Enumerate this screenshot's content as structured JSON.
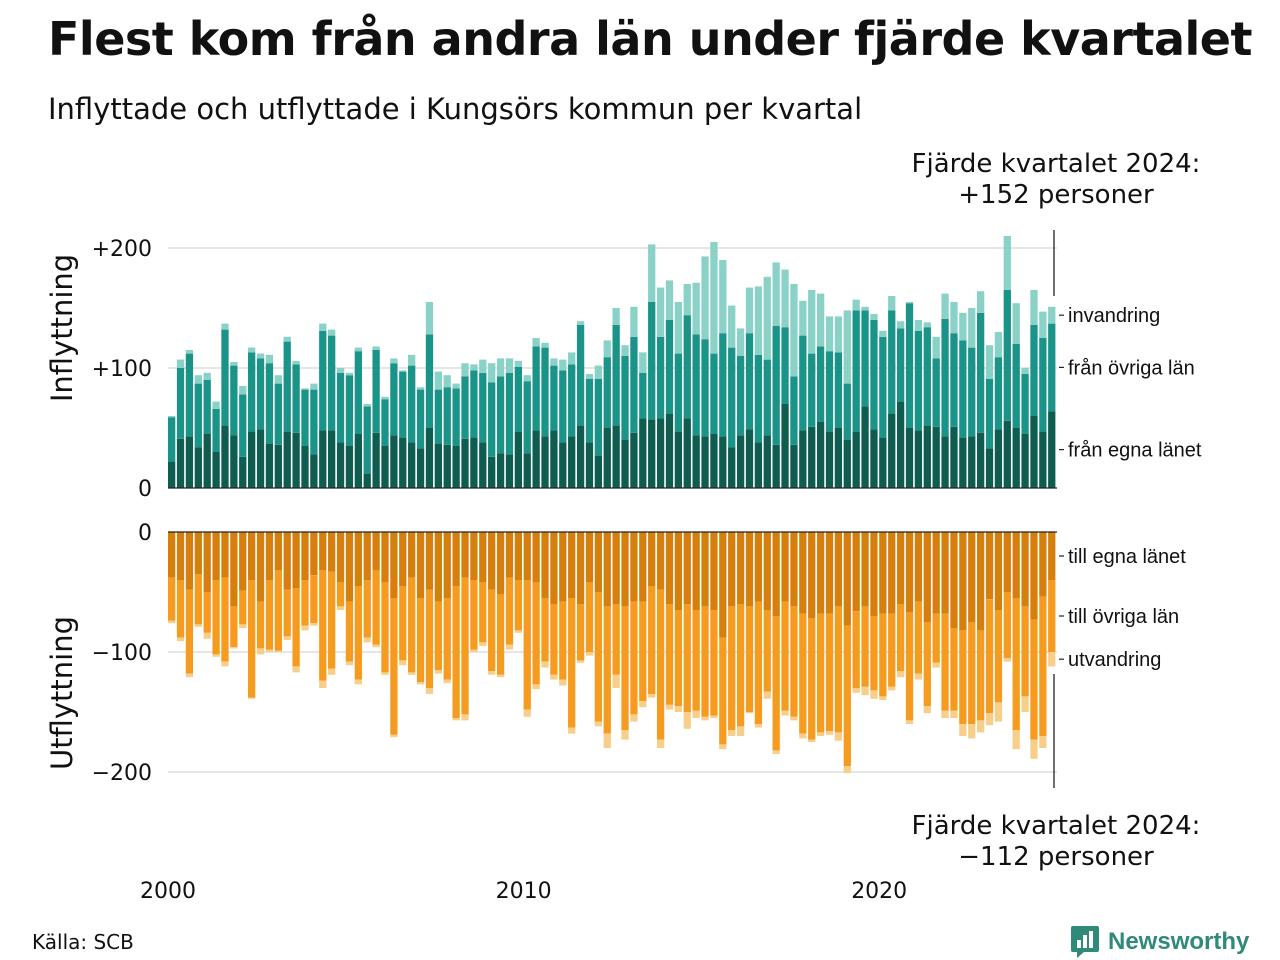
{
  "title": "Flest kom från andra län under fjärde kvartalet",
  "subtitle": "Inflyttade och utflyttade i Kungsörs kommun per kvartal",
  "note_top": {
    "line1": "Fjärde kvartalet 2024:",
    "line2": "+152 personer"
  },
  "note_bottom": {
    "line1": "Fjärde kvartalet 2024:",
    "line2": "−112 personer"
  },
  "source": "Källa: SCB",
  "brand": {
    "name": "Newsworthy",
    "icon": "newsworthy-logo-icon"
  },
  "colors": {
    "in_own": "#0f5c50",
    "in_other": "#1a9488",
    "in_abroad": "#8ad2c8",
    "out_own": "#d47f0e",
    "out_other": "#f59c20",
    "out_abroad": "#f8cf8a",
    "grid": "#dddddd",
    "brand": "#2f8a7a"
  },
  "chart_data": [
    {
      "type": "bar",
      "stacked": true,
      "panel": "top",
      "ylabel": "Inflyttning",
      "ylim": [
        0,
        220
      ],
      "yticks": [
        0,
        100,
        200
      ],
      "ytick_labels": [
        "0",
        "+100",
        "+200"
      ],
      "categories": [
        "2000 Q1",
        "2000 Q2",
        "2000 Q3",
        "2000 Q4",
        "2001 Q1",
        "2001 Q2",
        "2001 Q3",
        "2001 Q4",
        "2002 Q1",
        "2002 Q2",
        "2002 Q3",
        "2002 Q4",
        "2003 Q1",
        "2003 Q2",
        "2003 Q3",
        "2003 Q4",
        "2004 Q1",
        "2004 Q2",
        "2004 Q3",
        "2004 Q4",
        "2005 Q1",
        "2005 Q2",
        "2005 Q3",
        "2005 Q4",
        "2006 Q1",
        "2006 Q2",
        "2006 Q3",
        "2006 Q4",
        "2007 Q1",
        "2007 Q2",
        "2007 Q3",
        "2007 Q4",
        "2008 Q1",
        "2008 Q2",
        "2008 Q3",
        "2008 Q4",
        "2009 Q1",
        "2009 Q2",
        "2009 Q3",
        "2009 Q4",
        "2010 Q1",
        "2010 Q2",
        "2010 Q3",
        "2010 Q4",
        "2011 Q1",
        "2011 Q2",
        "2011 Q3",
        "2011 Q4",
        "2012 Q1",
        "2012 Q2",
        "2012 Q3",
        "2012 Q4",
        "2013 Q1",
        "2013 Q2",
        "2013 Q3",
        "2013 Q4",
        "2014 Q1",
        "2014 Q2",
        "2014 Q3",
        "2014 Q4",
        "2015 Q1",
        "2015 Q2",
        "2015 Q3",
        "2015 Q4",
        "2016 Q1",
        "2016 Q2",
        "2016 Q3",
        "2016 Q4",
        "2017 Q1",
        "2017 Q2",
        "2017 Q3",
        "2017 Q4",
        "2018 Q1",
        "2018 Q2",
        "2018 Q3",
        "2018 Q4",
        "2019 Q1",
        "2019 Q2",
        "2019 Q3",
        "2019 Q4",
        "2020 Q1",
        "2020 Q2",
        "2020 Q3",
        "2020 Q4",
        "2021 Q1",
        "2021 Q2",
        "2021 Q3",
        "2021 Q4",
        "2022 Q1",
        "2022 Q2",
        "2022 Q3",
        "2022 Q4",
        "2023 Q1",
        "2023 Q2",
        "2023 Q3",
        "2023 Q4",
        "2024 Q1",
        "2024 Q2",
        "2024 Q3",
        "2024 Q4"
      ],
      "x_tick_labels": [
        {
          "label": "2000",
          "category": "2000 Q1"
        },
        {
          "label": "2010",
          "category": "2010 Q1"
        },
        {
          "label": "2020",
          "category": "2020 Q1"
        }
      ],
      "series": [
        {
          "name": "från egna länet",
          "color": "#0f5c50",
          "values": [
            22,
            41,
            43,
            34,
            45,
            30,
            52,
            44,
            26,
            47,
            49,
            37,
            36,
            47,
            46,
            35,
            28,
            48,
            48,
            38,
            35,
            45,
            12,
            46,
            35,
            44,
            42,
            38,
            33,
            50,
            37,
            36,
            35,
            41,
            42,
            38,
            26,
            29,
            28,
            47,
            29,
            48,
            43,
            48,
            38,
            43,
            52,
            38,
            27,
            50,
            52,
            40,
            46,
            58,
            57,
            58,
            62,
            47,
            58,
            44,
            43,
            45,
            43,
            34,
            44,
            49,
            38,
            44,
            36,
            70,
            36,
            48,
            51,
            55,
            47,
            50,
            40,
            47,
            68,
            49,
            42,
            62,
            72,
            50,
            48,
            52,
            51,
            43,
            51,
            42,
            43,
            46,
            33,
            49,
            56,
            50,
            45,
            60,
            47,
            64
          ]
        },
        {
          "name": "från övriga län",
          "color": "#1a9488",
          "values": [
            37,
            59,
            69,
            53,
            45,
            36,
            80,
            58,
            52,
            66,
            59,
            67,
            51,
            75,
            57,
            47,
            54,
            83,
            79,
            58,
            59,
            69,
            56,
            69,
            39,
            60,
            55,
            64,
            49,
            78,
            45,
            48,
            48,
            52,
            56,
            58,
            62,
            64,
            68,
            54,
            60,
            70,
            74,
            54,
            60,
            60,
            84,
            53,
            64,
            59,
            84,
            70,
            80,
            38,
            98,
            68,
            78,
            65,
            86,
            84,
            81,
            67,
            86,
            83,
            66,
            80,
            73,
            63,
            99,
            64,
            57,
            79,
            61,
            63,
            67,
            63,
            47,
            101,
            80,
            91,
            84,
            86,
            61,
            104,
            83,
            82,
            57,
            98,
            78,
            81,
            74,
            100,
            58,
            60,
            109,
            70,
            50,
            76,
            78,
            73
          ]
        },
        {
          "name": "invandring",
          "color": "#8ad2c8",
          "values": [
            1,
            7,
            3,
            7,
            6,
            6,
            5,
            3,
            7,
            4,
            4,
            7,
            7,
            4,
            3,
            1,
            5,
            6,
            5,
            4,
            2,
            3,
            2,
            3,
            2,
            4,
            1,
            9,
            2,
            27,
            15,
            10,
            4,
            11,
            5,
            11,
            16,
            15,
            12,
            5,
            5,
            7,
            4,
            6,
            9,
            10,
            3,
            4,
            11,
            14,
            14,
            9,
            25,
            17,
            48,
            41,
            33,
            43,
            26,
            43,
            69,
            93,
            61,
            35,
            23,
            38,
            57,
            69,
            53,
            48,
            77,
            29,
            53,
            44,
            29,
            30,
            61,
            9,
            3,
            5,
            5,
            12,
            6,
            1,
            9,
            4,
            18,
            21,
            26,
            23,
            33,
            18,
            28,
            21,
            45,
            34,
            5,
            29,
            22,
            14
          ]
        }
      ]
    },
    {
      "type": "bar",
      "stacked": true,
      "panel": "bottom",
      "ylabel": "Utflyttning",
      "ylim": [
        -212,
        0
      ],
      "yticks": [
        0,
        -100,
        -200
      ],
      "ytick_labels": [
        "0",
        "−100",
        "−200"
      ],
      "series": [
        {
          "name": "till egna länet",
          "color": "#d47f0e",
          "values": [
            -38,
            -40,
            -48,
            -35,
            -50,
            -40,
            -38,
            -62,
            -49,
            -40,
            -58,
            -40,
            -32,
            -48,
            -47,
            -40,
            -36,
            -32,
            -33,
            -42,
            -58,
            -45,
            -40,
            -32,
            -42,
            -55,
            -45,
            -38,
            -55,
            -48,
            -58,
            -55,
            -45,
            -38,
            -40,
            -42,
            -48,
            -52,
            -38,
            -40,
            -40,
            -42,
            -55,
            -60,
            -58,
            -55,
            -60,
            -42,
            -50,
            -62,
            -60,
            -62,
            -58,
            -58,
            -45,
            -48,
            -60,
            -65,
            -60,
            -65,
            -62,
            -65,
            -88,
            -62,
            -60,
            -62,
            -58,
            -65,
            -70,
            -58,
            -62,
            -68,
            -72,
            -68,
            -68,
            -62,
            -78,
            -66,
            -62,
            -70,
            -68,
            -68,
            -60,
            -67,
            -58,
            -75,
            -68,
            -68,
            -80,
            -82,
            -75,
            -82,
            -56,
            -65,
            -50,
            -55,
            -62,
            -73,
            -54,
            -40
          ]
        },
        {
          "name": "till övriga län",
          "color": "#f59c20",
          "values": [
            -36,
            -48,
            -70,
            -42,
            -34,
            -62,
            -70,
            -34,
            -28,
            -98,
            -39,
            -58,
            -67,
            -39,
            -65,
            -38,
            -40,
            -92,
            -81,
            -20,
            -50,
            -78,
            -48,
            -62,
            -75,
            -114,
            -62,
            -79,
            -70,
            -82,
            -57,
            -68,
            -110,
            -114,
            -58,
            -50,
            -68,
            -67,
            -56,
            -42,
            -108,
            -85,
            -53,
            -59,
            -65,
            -108,
            -47,
            -58,
            -108,
            -106,
            -59,
            -103,
            -94,
            -83,
            -90,
            -125,
            -84,
            -80,
            -90,
            -84,
            -92,
            -88,
            -89,
            -103,
            -102,
            -88,
            -102,
            -68,
            -112,
            -91,
            -92,
            -100,
            -101,
            -99,
            -98,
            -105,
            -117,
            -64,
            -67,
            -62,
            -69,
            -61,
            -56,
            -90,
            -60,
            -70,
            -41,
            -81,
            -69,
            -78,
            -85,
            -75,
            -95,
            -77,
            -55,
            -110,
            -75,
            -100,
            -116,
            -60
          ]
        },
        {
          "name": "utvandring",
          "color": "#f8cf8a",
          "values": [
            -2,
            -3,
            -3,
            -2,
            -5,
            -2,
            -4,
            -1,
            -3,
            -1,
            -5,
            -2,
            -1,
            -3,
            -5,
            -4,
            -2,
            -6,
            -5,
            -3,
            -3,
            -4,
            -4,
            -2,
            -2,
            -2,
            -4,
            -2,
            -2,
            -5,
            -3,
            -3,
            -2,
            -5,
            -2,
            -3,
            -3,
            -2,
            -4,
            -2,
            -6,
            -4,
            -5,
            -4,
            -5,
            -5,
            -2,
            -3,
            -4,
            -12,
            -11,
            -8,
            -6,
            -5,
            -3,
            -7,
            -4,
            -5,
            -14,
            -6,
            -3,
            -2,
            -4,
            -5,
            -8,
            -1,
            -3,
            -6,
            -3,
            -4,
            -3,
            -4,
            -2,
            -3,
            -3,
            -7,
            -6,
            -4,
            -7,
            -7,
            -3,
            -3,
            -5,
            -3,
            -5,
            -6,
            -4,
            -6,
            -6,
            -10,
            -12,
            -10,
            -10,
            -16,
            -3,
            -16,
            -13,
            -16,
            -10,
            -12
          ]
        }
      ]
    }
  ]
}
